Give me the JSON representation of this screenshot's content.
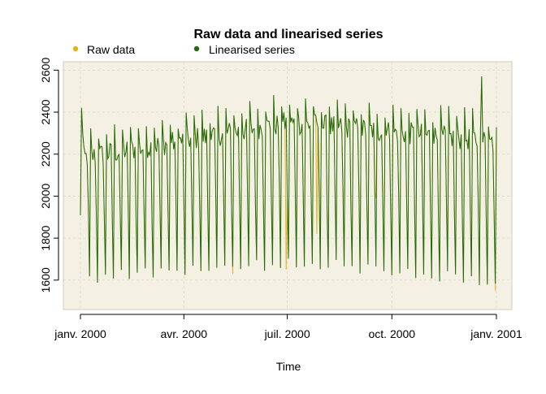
{
  "chart_data": {
    "type": "line",
    "title": "Raw data and linearised series",
    "xlabel": "Time",
    "ylabel": "",
    "x_range": [
      "2000-01-01",
      "2001-01-01"
    ],
    "x_ticks": [
      {
        "date": "2000-01-01",
        "label": "janv. 2000"
      },
      {
        "date": "2000-04-01",
        "label": "avr. 2000"
      },
      {
        "date": "2000-07-01",
        "label": "juil. 2000"
      },
      {
        "date": "2000-10-01",
        "label": "oct. 2000"
      },
      {
        "date": "2001-01-01",
        "label": "janv. 2001"
      }
    ],
    "ylim": [
      1460,
      2640
    ],
    "y_ticks": [
      1600,
      1800,
      2000,
      2200,
      2400,
      2600
    ],
    "grid": true,
    "legend_position": "top-left",
    "background_color": "#f4f1e4",
    "grid_color": "#d9d6c6",
    "series": [
      {
        "name": "Raw data",
        "color": "#e6b21c",
        "marker": "dot"
      },
      {
        "name": "Linearised series",
        "color": "#1e6b10",
        "marker": "dot"
      }
    ],
    "pattern": {
      "frequency": "daily",
      "weekly_cycle": true,
      "weekday_level_start": 2180,
      "weekday_level_mid": 2350,
      "weekday_level_end": 2260,
      "weekend_level_start": 1600,
      "weekend_level_mid": 1680,
      "weekend_level_end": 1600,
      "raw_data_only_dips": [
        {
          "date": "2000-05-14",
          "value": 1630
        },
        {
          "date": "2000-06-30",
          "value": 1650
        },
        {
          "date": "2000-07-27",
          "value": 1820
        },
        {
          "date": "2000-09-17",
          "value": 1990
        },
        {
          "date": "2000-11-19",
          "value": 1700
        },
        {
          "date": "2000-12-31",
          "value": 1550
        }
      ],
      "peaks": [
        {
          "date": "2000-01-02",
          "value": 2420
        },
        {
          "date": "2000-12-19",
          "value": 2570
        }
      ]
    }
  }
}
